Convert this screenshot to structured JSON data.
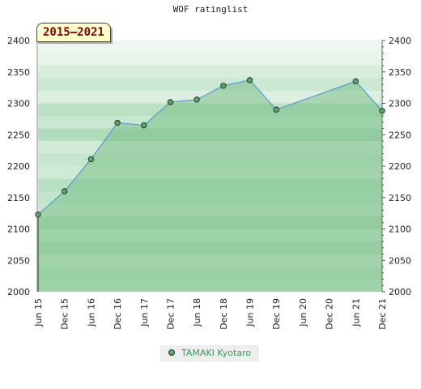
{
  "page": {
    "title": "WOF ratinglist",
    "period": "2015–2021",
    "legend_label": "TAMAKI Kyotaro"
  },
  "chart_data": {
    "type": "area",
    "title": "WOF ratinglist",
    "xlabel": "",
    "ylabel": "",
    "x": [
      "Jun 15",
      "Dec 15",
      "Jun 16",
      "Dec 16",
      "Jun 17",
      "Dec 17",
      "Jun 18",
      "Dec 18",
      "Jun 19",
      "Dec 19",
      "Jun 20",
      "Dec 20",
      "Jun 21",
      "Dec 21"
    ],
    "ylim": [
      2000,
      2400
    ],
    "yticks": [
      2000,
      2050,
      2100,
      2150,
      2200,
      2250,
      2300,
      2350,
      2400
    ],
    "series": [
      {
        "name": "TAMAKI Kyotaro",
        "points": [
          {
            "x": "Jun 15",
            "y": 2123
          },
          {
            "x": "Dec 15",
            "y": 2160
          },
          {
            "x": "Jun 16",
            "y": 2211
          },
          {
            "x": "Dec 16",
            "y": 2269
          },
          {
            "x": "Jun 17",
            "y": 2265
          },
          {
            "x": "Dec 17",
            "y": 2302
          },
          {
            "x": "Jun 18",
            "y": 2306
          },
          {
            "x": "Dec 18",
            "y": 2328
          },
          {
            "x": "Jun 19",
            "y": 2337
          },
          {
            "x": "Dec 19",
            "y": 2290
          },
          {
            "x": "Jun 21",
            "y": 2335
          },
          {
            "x": "Dec 21",
            "y": 2288
          }
        ]
      }
    ],
    "colors": {
      "line": "#5aa0d0",
      "fill": "#6ab878",
      "marker": "#58a868",
      "band_light": "#f0f8f2",
      "band_dark": "#78c48c",
      "title": "#222222",
      "badge_text": "#800000",
      "badge_bg": "#ffffcc",
      "legend_text": "#3a9a5a"
    },
    "grid": false,
    "legend_position": "bottom-center"
  }
}
